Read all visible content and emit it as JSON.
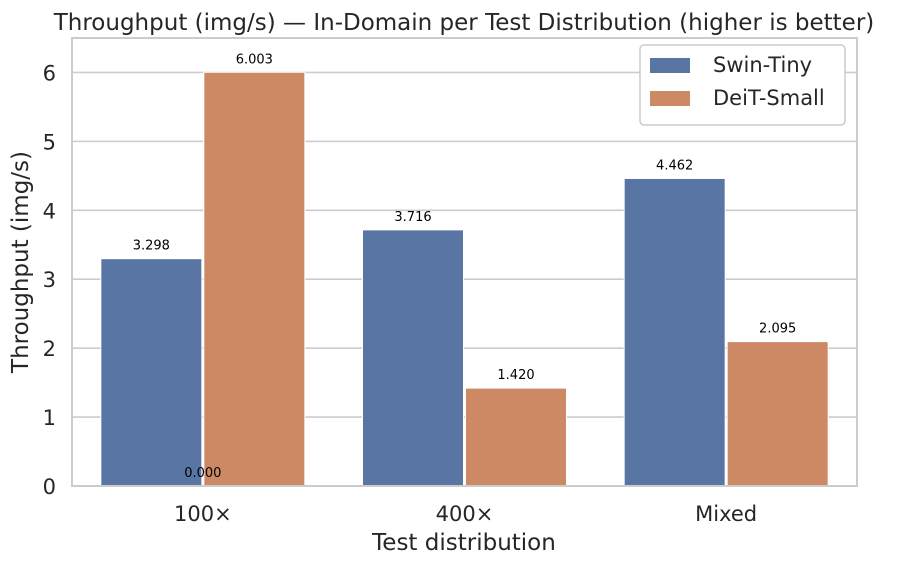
{
  "chart_data": {
    "type": "bar",
    "title": "Throughput (img/s) — In-Domain per Test Distribution (higher is better)",
    "xlabel": "Test distribution",
    "ylabel": "Throughput (img/s)",
    "categories": [
      "100×",
      "400×",
      "Mixed"
    ],
    "series": [
      {
        "name": "Swin-Tiny",
        "values": [
          3.298,
          3.716,
          4.462
        ],
        "color": "#5875a4"
      },
      {
        "name": "DeiT-Small",
        "values": [
          6.003,
          1.42,
          2.095
        ],
        "color": "#cc8963"
      }
    ],
    "extra_labels": [
      {
        "text": "0.000",
        "category": "100×",
        "value": 0
      }
    ],
    "ylim": [
      0,
      6.5
    ],
    "yticks": [
      "0",
      "1",
      "2",
      "3",
      "4",
      "5",
      "6"
    ],
    "grid": true,
    "legend_position": "top-right"
  }
}
